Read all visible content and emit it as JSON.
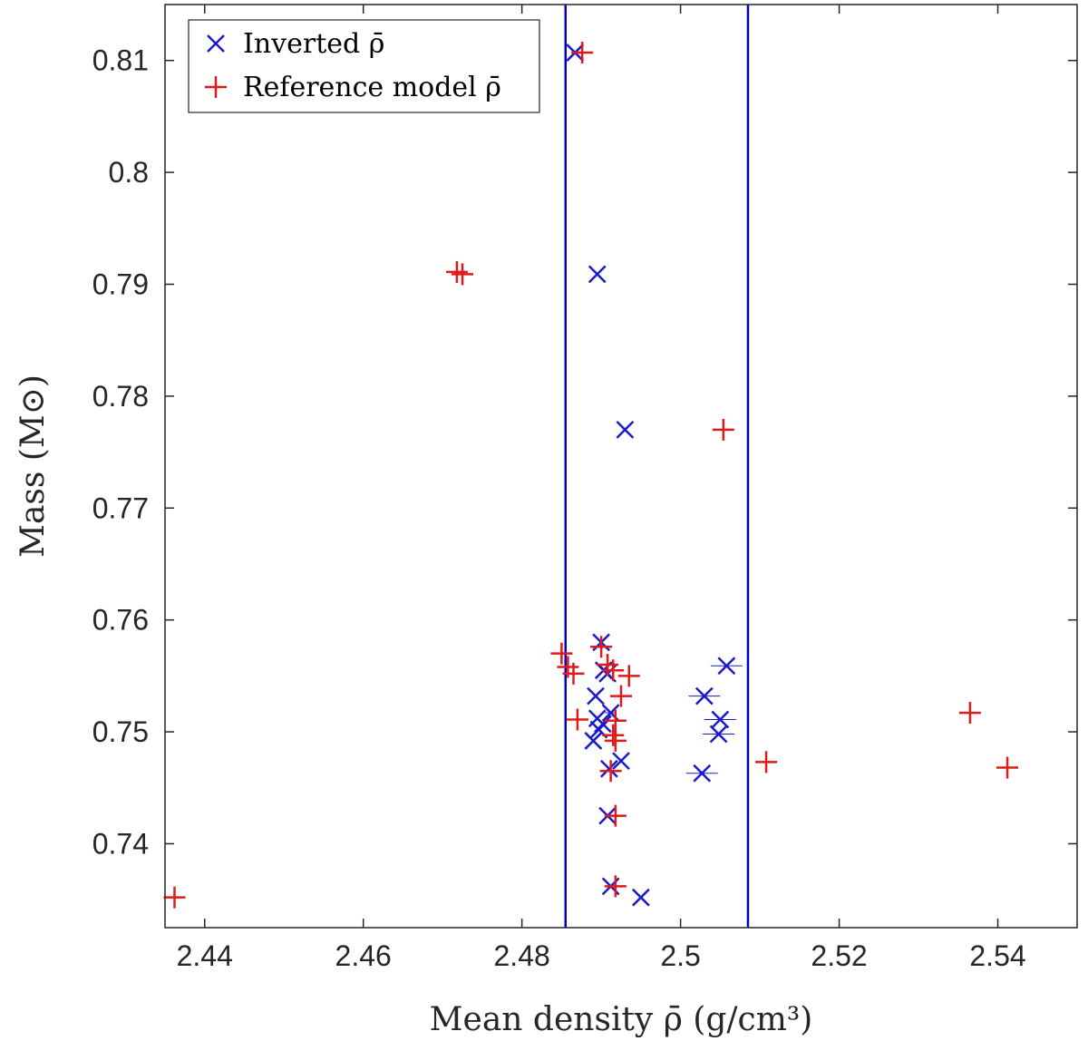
{
  "chart_data": {
    "type": "scatter",
    "xlabel": "Mean density ρ̄ (g/cm³)",
    "ylabel": "Mass (M⊙)",
    "xlim": [
      2.435,
      2.55
    ],
    "ylim": [
      0.7325,
      0.815
    ],
    "x_ticks": [
      2.44,
      2.46,
      2.48,
      2.5,
      2.52,
      2.54
    ],
    "x_tick_labels": [
      "2.44",
      "2.46",
      "2.48",
      "2.5",
      "2.52",
      "2.54"
    ],
    "y_ticks": [
      0.74,
      0.75,
      0.76,
      0.77,
      0.78,
      0.79,
      0.8,
      0.81
    ],
    "y_tick_labels": [
      "0.74",
      "0.75",
      "0.76",
      "0.77",
      "0.78",
      "0.79",
      "0.8",
      "0.81"
    ],
    "grid": false,
    "legend_position": "top-left",
    "vertical_lines": [
      {
        "x": 2.4855,
        "color": "#0000cc"
      },
      {
        "x": 2.5085,
        "color": "#0000cc"
      }
    ],
    "series": [
      {
        "name": "Inverted ρ̄",
        "marker": "x",
        "color": "#1a1acc",
        "points": [
          {
            "x": 2.4867,
            "y": 0.8107
          },
          {
            "x": 2.4895,
            "y": 0.7909
          },
          {
            "x": 2.493,
            "y": 0.777
          },
          {
            "x": 2.49,
            "y": 0.758
          },
          {
            "x": 2.4903,
            "y": 0.7555
          },
          {
            "x": 2.4908,
            "y": 0.7552
          },
          {
            "x": 2.4893,
            "y": 0.7532
          },
          {
            "x": 2.4912,
            "y": 0.7517,
            "xerr": 0.0007
          },
          {
            "x": 2.4895,
            "y": 0.7512
          },
          {
            "x": 2.4902,
            "y": 0.7507
          },
          {
            "x": 2.4897,
            "y": 0.7502
          },
          {
            "x": 2.489,
            "y": 0.7492
          },
          {
            "x": 2.4925,
            "y": 0.7474
          },
          {
            "x": 2.491,
            "y": 0.7467
          },
          {
            "x": 2.4908,
            "y": 0.7425
          },
          {
            "x": 2.4912,
            "y": 0.7362
          },
          {
            "x": 2.495,
            "y": 0.7352
          },
          {
            "x": 2.5058,
            "y": 0.7559,
            "xerr": 0.002
          },
          {
            "x": 2.503,
            "y": 0.7532,
            "xerr": 0.002
          },
          {
            "x": 2.505,
            "y": 0.7511,
            "xerr": 0.002
          },
          {
            "x": 2.5048,
            "y": 0.7498,
            "xerr": 0.002
          },
          {
            "x": 2.5027,
            "y": 0.7463,
            "xerr": 0.002
          }
        ]
      },
      {
        "name": "Reference model ρ̄",
        "marker": "+",
        "color": "#e01a1a",
        "points": [
          {
            "x": 2.4876,
            "y": 0.8107
          },
          {
            "x": 2.4718,
            "y": 0.7911
          },
          {
            "x": 2.4725,
            "y": 0.7909
          },
          {
            "x": 2.5054,
            "y": 0.777
          },
          {
            "x": 2.485,
            "y": 0.757
          },
          {
            "x": 2.4858,
            "y": 0.7558
          },
          {
            "x": 2.4865,
            "y": 0.7552
          },
          {
            "x": 2.49,
            "y": 0.7576
          },
          {
            "x": 2.4908,
            "y": 0.756
          },
          {
            "x": 2.4915,
            "y": 0.7555
          },
          {
            "x": 2.4935,
            "y": 0.755
          },
          {
            "x": 2.4925,
            "y": 0.7532
          },
          {
            "x": 2.487,
            "y": 0.7511
          },
          {
            "x": 2.4918,
            "y": 0.751
          },
          {
            "x": 2.4915,
            "y": 0.7497
          },
          {
            "x": 2.4918,
            "y": 0.7492
          },
          {
            "x": 2.4912,
            "y": 0.7465
          },
          {
            "x": 2.4918,
            "y": 0.7425
          },
          {
            "x": 2.4918,
            "y": 0.7362
          },
          {
            "x": 2.5108,
            "y": 0.7473
          },
          {
            "x": 2.5365,
            "y": 0.7517
          },
          {
            "x": 2.5412,
            "y": 0.7468
          },
          {
            "x": 2.4362,
            "y": 0.7352
          }
        ]
      }
    ]
  }
}
